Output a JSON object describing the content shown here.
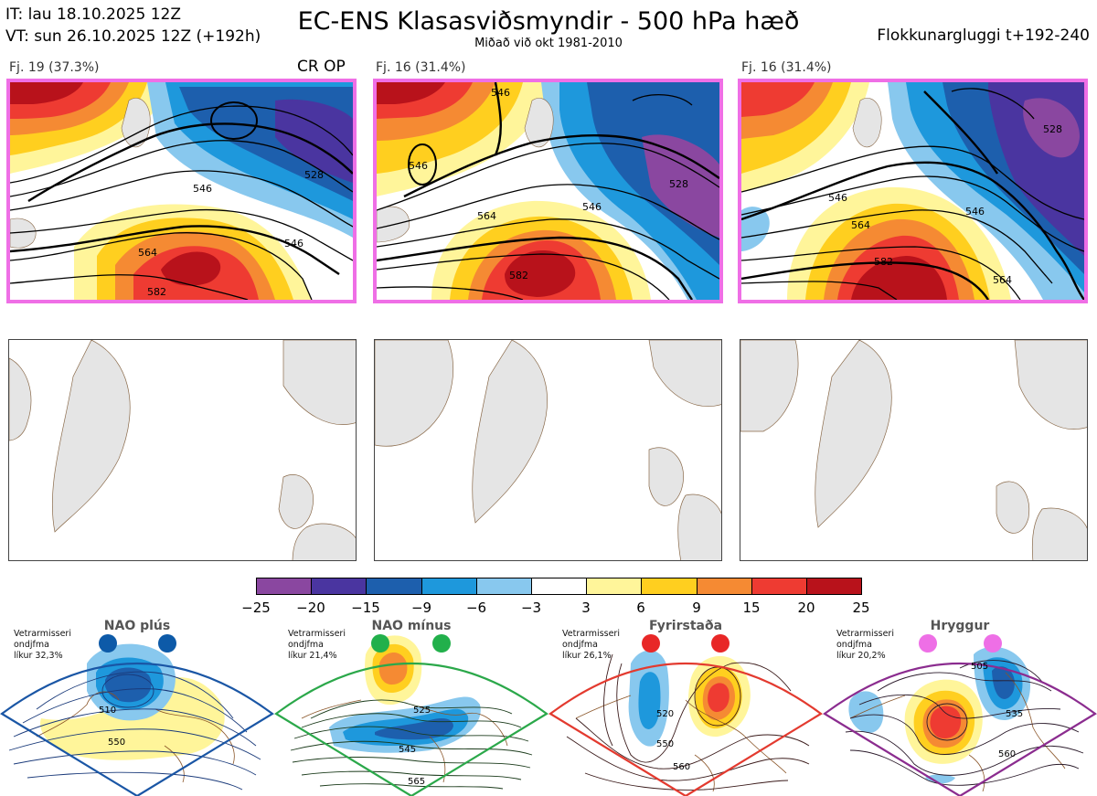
{
  "header": {
    "it_line": "IT: lau 18.10.2025 12Z",
    "vt_line": "VT: sun 26.10.2025 12Z  (+192h)",
    "title": "EC-ENS Klasasviðsmyndir - 500 hPa hæð",
    "subtitle": "Miðað við okt 1981-2010",
    "window": "Flokkunargluggi t+192-240"
  },
  "panels": [
    {
      "label": "Fj. 19 (37.3%)",
      "tag": "CR OP",
      "contours": [
        "528",
        "546",
        "564",
        "582",
        "546"
      ]
    },
    {
      "label": "Fj. 16 (31.4%)",
      "tag": "",
      "contours": [
        "546",
        "564",
        "582",
        "528",
        "546",
        "546"
      ]
    },
    {
      "label": "Fj. 16 (31.4%)",
      "tag": "",
      "contours": [
        "546",
        "564",
        "582",
        "528",
        "546",
        "564"
      ]
    }
  ],
  "colorbar": {
    "ticks": [
      "−25",
      "−20",
      "−15",
      "−9",
      "−6",
      "−3",
      "3",
      "6",
      "9",
      "15",
      "20",
      "25"
    ],
    "colors": [
      "#8a47a0",
      "#4a35a0",
      "#1d5fad",
      "#1e98dc",
      "#88c8ee",
      "#ffffff",
      "#fff59a",
      "#ffcf1f",
      "#f58a33",
      "#ee3b32",
      "#b8121b"
    ]
  },
  "regimes": [
    {
      "name": "NAO plús",
      "note_lines": [
        "Vetrarmisseri",
        "ondjfma",
        "líkur 32,3%"
      ],
      "dot_color": "#0d5aa8",
      "edge_color": "#1a56a5",
      "contours": [
        "510",
        "550"
      ]
    },
    {
      "name": "NAO mínus",
      "note_lines": [
        "Vetrarmisseri",
        "ondjfma",
        "líkur 21,4%"
      ],
      "dot_color": "#22b04b",
      "edge_color": "#2ba84a",
      "contours": [
        "525",
        "545",
        "565"
      ]
    },
    {
      "name": "Fyrirstaða",
      "note_lines": [
        "Vetrarmisseri",
        "ondjfma",
        "líkur 26,1%"
      ],
      "dot_color": "#e82727",
      "edge_color": "#e33a2f",
      "contours": [
        "520",
        "550",
        "560"
      ]
    },
    {
      "name": "Hryggur",
      "note_lines": [
        "Vetrarmisseri",
        "ondjfma",
        "líkur 20,2%"
      ],
      "dot_color": "#ee6fe6",
      "edge_color": "#8b2c8f",
      "contours": [
        "505",
        "535",
        "560"
      ]
    }
  ]
}
